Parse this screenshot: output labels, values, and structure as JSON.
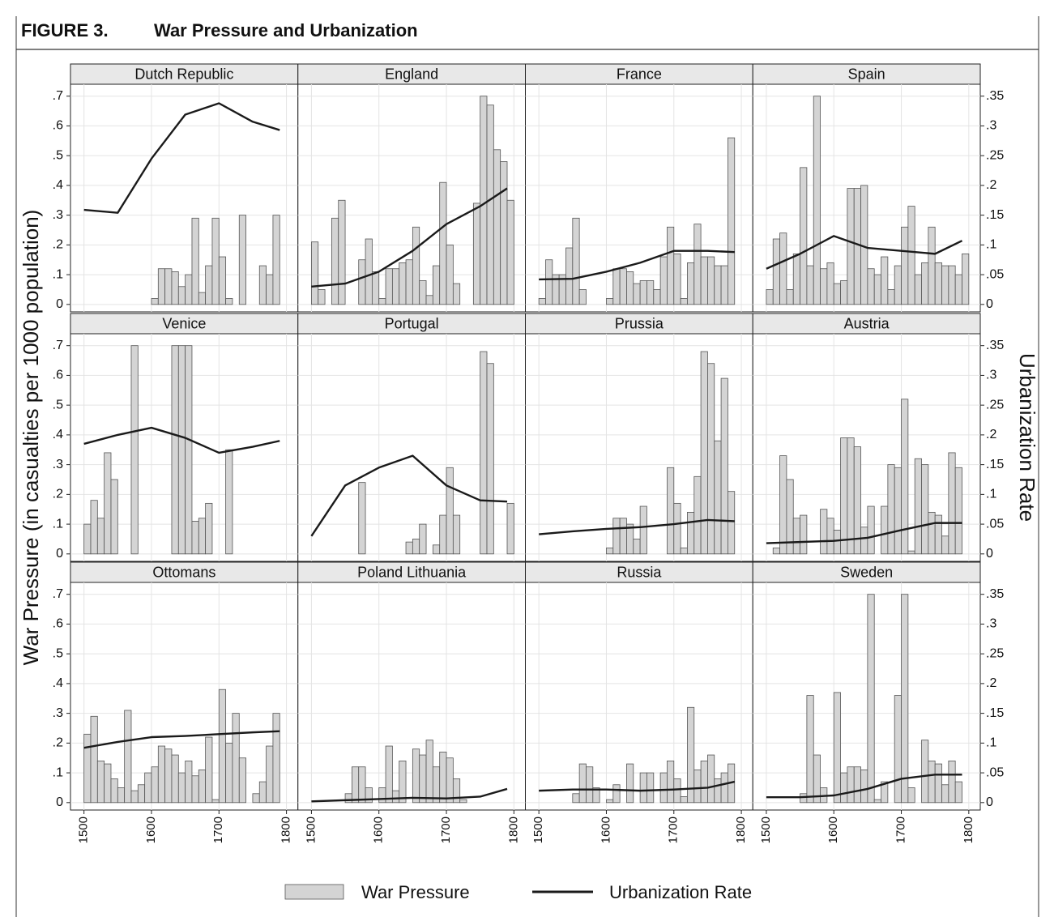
{
  "chart_data": {
    "type": "combo",
    "figure_label": "FIGURE 3.",
    "title": "War Pressure and Urbanization",
    "y_label": "War Pressure (in casualties per 1000 population)",
    "y2_label": "Urbanization Rate",
    "xlim": [
      1480,
      1817
    ],
    "xticks": [
      1500,
      1600,
      1700,
      1800
    ],
    "ylim": [
      -0.025,
      0.74
    ],
    "yticks": [
      0,
      {
        "value": 0.1,
        "label": ".1"
      },
      {
        "value": 0.2,
        "label": ".2"
      },
      {
        "value": 0.3,
        "label": ".3"
      },
      {
        "value": 0.4,
        "label": ".4"
      },
      {
        "value": 0.5,
        "label": ".5"
      },
      {
        "value": 0.6,
        "label": ".6"
      },
      {
        "value": 0.7,
        "label": ".7"
      }
    ],
    "y2lim": [
      -0.0125,
      0.37
    ],
    "y2ticks": [
      0,
      {
        "value": 0.05,
        "label": ".05"
      },
      {
        "value": 0.1,
        "label": ".1"
      },
      {
        "value": 0.15,
        "label": ".15"
      },
      {
        "value": 0.2,
        "label": ".2"
      },
      {
        "value": 0.25,
        "label": ".25"
      },
      {
        "value": 0.3,
        "label": ".3"
      },
      {
        "value": 0.35,
        "label": ".35"
      }
    ],
    "grid": true,
    "legend": "bottom",
    "series": [
      {
        "name": "War Pressure",
        "type": "bar",
        "color": "#d4d4d4",
        "x": [
          1500,
          1510,
          1520,
          1530,
          1540,
          1550,
          1560,
          1570,
          1580,
          1590,
          1600,
          1610,
          1620,
          1630,
          1640,
          1650,
          1660,
          1670,
          1680,
          1690,
          1700,
          1710,
          1720,
          1730,
          1740,
          1750,
          1760,
          1770,
          1780,
          1790
        ]
      },
      {
        "name": "Urbanization Rate",
        "type": "line",
        "color": "#1a1a1a",
        "axis": "y2",
        "x": [
          1500,
          1550,
          1600,
          1650,
          1700,
          1750,
          1790
        ]
      }
    ],
    "panels": [
      {
        "title": "Dutch Republic",
        "values": [
          [
            null,
            null,
            null,
            null,
            null,
            null,
            null,
            null,
            null,
            null,
            0.02,
            0.12,
            0.12,
            0.11,
            0.06,
            0.1,
            0.29,
            0.04,
            0.13,
            0.29,
            0.16,
            0.02,
            null,
            0.3,
            null,
            null,
            0.13,
            0.1,
            0.3,
            null
          ],
          [
            0.159,
            0.154,
            0.245,
            0.319,
            0.338,
            0.307,
            0.293
          ]
        ]
      },
      {
        "title": "England",
        "values": [
          [
            0.21,
            0.05,
            null,
            0.29,
            0.35,
            null,
            null,
            0.15,
            0.22,
            0.11,
            0.02,
            0.12,
            0.12,
            0.14,
            0.15,
            0.26,
            0.08,
            0.03,
            0.13,
            0.41,
            0.2,
            0.07,
            null,
            null,
            0.34,
            0.7,
            0.67,
            0.52,
            0.48,
            0.35
          ],
          [
            0.03,
            0.035,
            0.055,
            0.09,
            0.135,
            0.165,
            0.195
          ]
        ]
      },
      {
        "title": "France",
        "values": [
          [
            0.02,
            0.15,
            0.1,
            0.1,
            0.19,
            0.29,
            0.05,
            null,
            null,
            null,
            0.02,
            0.12,
            0.12,
            0.11,
            0.07,
            0.08,
            0.08,
            0.05,
            0.16,
            0.26,
            0.17,
            0.02,
            0.14,
            0.27,
            0.16,
            0.16,
            0.13,
            0.13,
            0.56,
            null
          ],
          [
            0.042,
            0.043,
            0.055,
            0.07,
            0.09,
            0.09,
            0.088
          ]
        ]
      },
      {
        "title": "Spain",
        "values": [
          [
            0.05,
            0.22,
            0.24,
            0.05,
            0.17,
            0.46,
            0.13,
            0.7,
            0.12,
            0.14,
            0.07,
            0.08,
            0.39,
            0.39,
            0.4,
            0.12,
            0.1,
            0.16,
            0.05,
            0.13,
            0.26,
            0.33,
            0.1,
            0.14,
            0.26,
            0.14,
            0.13,
            0.13,
            0.1,
            0.17
          ],
          [
            0.06,
            0.085,
            0.115,
            0.095,
            0.09,
            0.085,
            0.107
          ]
        ]
      },
      {
        "title": "Venice",
        "values": [
          [
            0.1,
            0.18,
            0.12,
            0.34,
            0.25,
            null,
            null,
            0.7,
            null,
            null,
            null,
            null,
            null,
            0.7,
            0.7,
            0.7,
            0.11,
            0.12,
            0.17,
            null,
            null,
            0.35,
            null,
            null,
            null,
            null,
            null,
            null,
            null,
            null
          ],
          [
            0.185,
            0.2,
            0.212,
            0.195,
            0.17,
            0.18,
            0.19
          ]
        ]
      },
      {
        "title": "Portugal",
        "values": [
          [
            null,
            null,
            null,
            null,
            null,
            null,
            null,
            0.24,
            null,
            null,
            null,
            null,
            null,
            null,
            0.04,
            0.05,
            0.1,
            null,
            0.03,
            0.13,
            0.29,
            0.13,
            null,
            null,
            null,
            0.68,
            0.64,
            null,
            null,
            0.17
          ],
          [
            0.03,
            0.115,
            0.145,
            0.165,
            0.115,
            0.09,
            0.088
          ]
        ]
      },
      {
        "title": "Prussia",
        "values": [
          [
            null,
            null,
            null,
            null,
            null,
            null,
            null,
            null,
            null,
            null,
            0.02,
            0.12,
            0.12,
            0.1,
            0.05,
            0.16,
            null,
            null,
            null,
            0.29,
            0.17,
            0.02,
            0.14,
            0.26,
            0.68,
            0.64,
            0.38,
            0.59,
            0.21,
            null
          ],
          [
            0.033,
            0.038,
            0.042,
            0.045,
            0.05,
            0.057,
            0.055
          ]
        ]
      },
      {
        "title": "Austria",
        "values": [
          [
            null,
            0.02,
            0.33,
            0.25,
            0.12,
            0.13,
            null,
            null,
            0.15,
            0.12,
            0.08,
            0.39,
            0.39,
            0.36,
            0.09,
            0.16,
            null,
            0.16,
            0.3,
            0.29,
            0.52,
            0.01,
            0.32,
            0.3,
            0.14,
            0.13,
            0.06,
            0.34,
            0.29,
            null
          ],
          [
            0.018,
            0.02,
            0.022,
            0.027,
            0.04,
            0.052,
            0.052
          ]
        ]
      },
      {
        "title": "Ottomans",
        "values": [
          [
            0.23,
            0.29,
            0.14,
            0.13,
            0.08,
            0.05,
            0.31,
            0.04,
            0.06,
            0.1,
            0.12,
            0.19,
            0.18,
            0.16,
            0.1,
            0.14,
            0.09,
            0.11,
            0.22,
            0.01,
            0.38,
            0.2,
            0.3,
            0.15,
            null,
            0.03,
            0.07,
            0.19,
            0.3,
            null
          ],
          [
            0.092,
            0.102,
            0.11,
            0.112,
            0.115,
            0.118,
            0.12
          ]
        ]
      },
      {
        "title": "Poland Lithuania",
        "values": [
          [
            null,
            null,
            null,
            null,
            null,
            0.03,
            0.12,
            0.12,
            0.05,
            null,
            0.05,
            0.19,
            0.04,
            0.14,
            null,
            0.18,
            0.16,
            0.21,
            0.12,
            0.17,
            0.15,
            0.08,
            0.01,
            null,
            null,
            null,
            null,
            null,
            null,
            null
          ],
          [
            0.002,
            0.004,
            0.006,
            0.008,
            0.007,
            0.01,
            0.023
          ]
        ]
      },
      {
        "title": "Russia",
        "values": [
          [
            null,
            null,
            null,
            null,
            null,
            0.03,
            0.13,
            0.12,
            0.05,
            null,
            0.01,
            0.06,
            null,
            0.13,
            null,
            0.1,
            0.1,
            null,
            0.1,
            0.14,
            0.08,
            0.02,
            0.32,
            0.11,
            0.14,
            0.16,
            0.08,
            0.1,
            0.13,
            null
          ],
          [
            0.02,
            0.022,
            0.022,
            0.02,
            0.022,
            0.025,
            0.035
          ]
        ]
      },
      {
        "title": "Sweden",
        "values": [
          [
            null,
            null,
            null,
            null,
            null,
            0.03,
            0.36,
            0.16,
            0.05,
            null,
            0.37,
            0.1,
            0.12,
            0.12,
            0.11,
            0.7,
            0.01,
            0.07,
            null,
            0.36,
            0.7,
            0.05,
            null,
            0.21,
            0.14,
            0.13,
            0.06,
            0.14,
            0.07,
            null
          ],
          [
            0.009,
            0.009,
            0.012,
            0.023,
            0.04,
            0.047,
            0.047
          ]
        ]
      }
    ]
  }
}
